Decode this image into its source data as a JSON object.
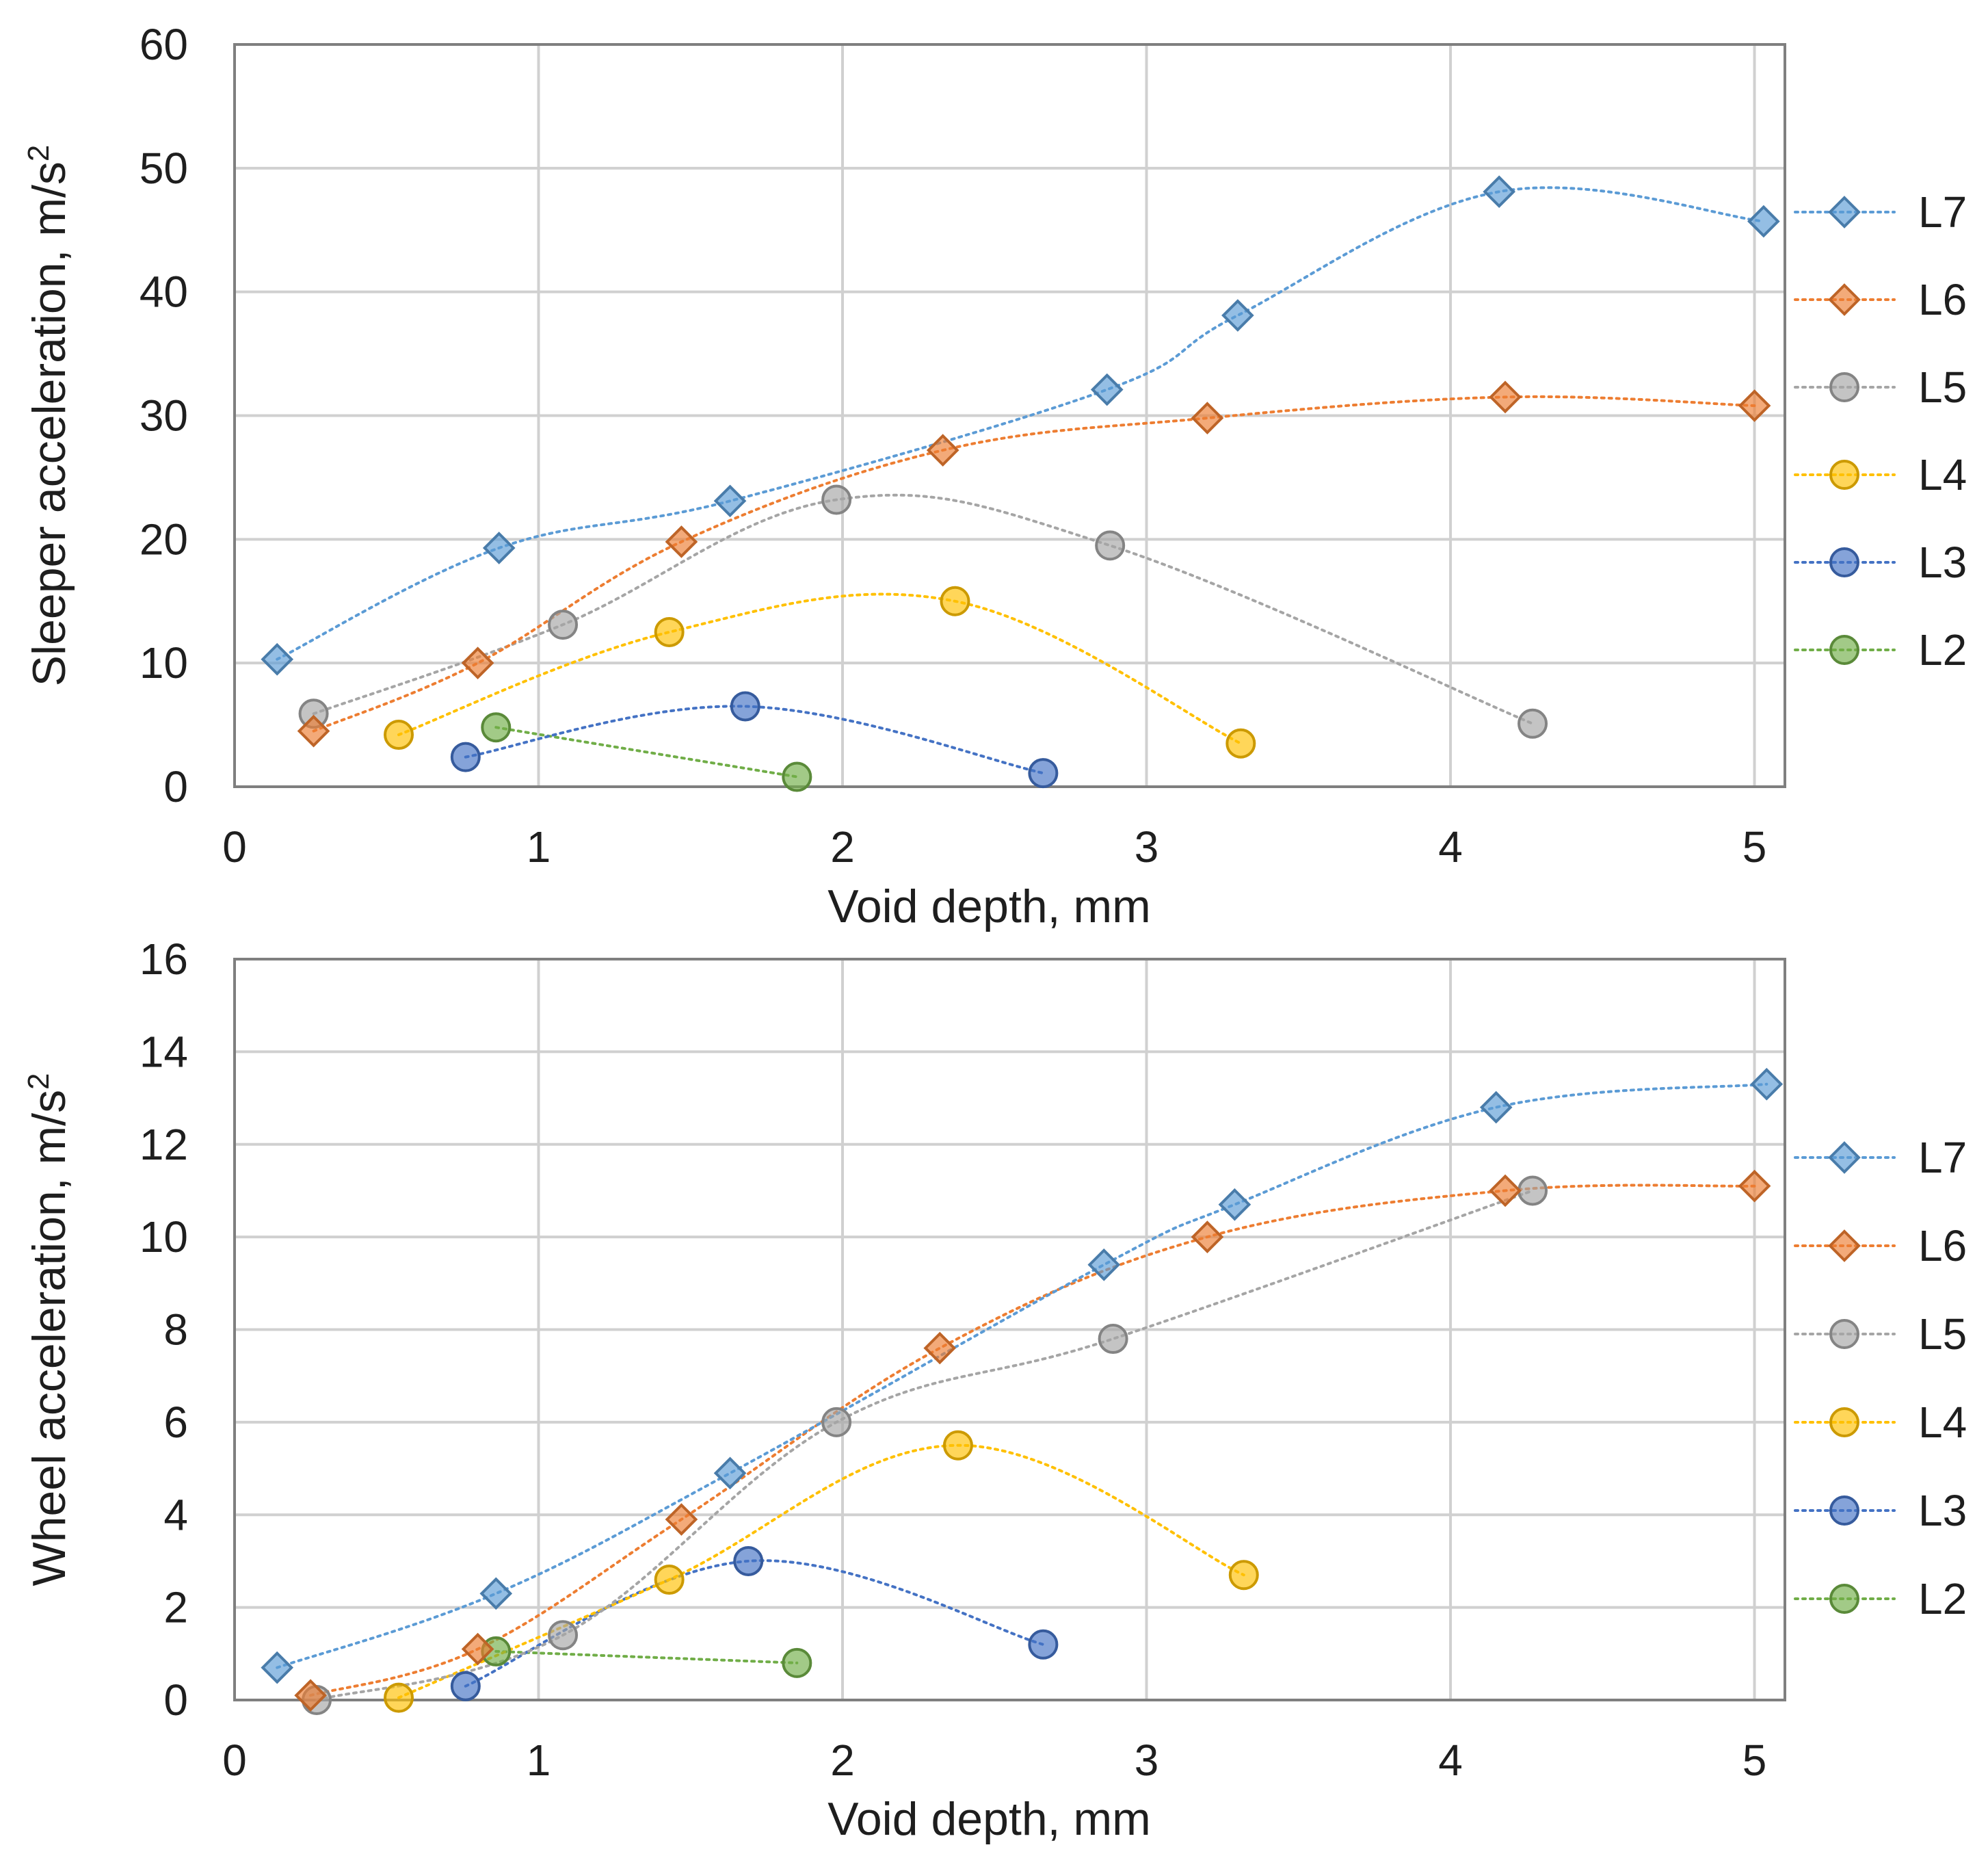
{
  "chart_data": [
    {
      "type": "scatter",
      "ylabel": "Sleeper acceleration, m/s",
      "ylabel_sup": "2",
      "xlabel": "Void depth, mm",
      "xlim": [
        0,
        5.1
      ],
      "ylim": [
        0,
        60
      ],
      "xticks": [
        0,
        1,
        2,
        3,
        4,
        5
      ],
      "yticks": [
        0,
        10,
        20,
        30,
        40,
        50,
        60
      ],
      "grid": true,
      "legend_position": "right",
      "series": [
        {
          "name": "L7",
          "marker": "diamond",
          "color": "#5B9BD5",
          "x": [
            0.14,
            0.87,
            1.63,
            2.87,
            3.3,
            4.16,
            5.03
          ],
          "y": [
            10.3,
            19.3,
            23.1,
            32.1,
            38.1,
            48.1,
            45.7
          ]
        },
        {
          "name": "L6",
          "marker": "diamond",
          "color": "#ED7D31",
          "x": [
            0.26,
            0.8,
            1.47,
            2.33,
            3.2,
            4.18,
            5.0
          ],
          "y": [
            4.5,
            10.0,
            19.8,
            27.2,
            29.8,
            31.5,
            30.8
          ]
        },
        {
          "name": "L5",
          "marker": "circle",
          "color": "#A5A5A5",
          "x": [
            0.26,
            1.08,
            1.98,
            2.88,
            4.27
          ],
          "y": [
            5.9,
            13.1,
            23.2,
            19.5,
            5.1
          ]
        },
        {
          "name": "L4",
          "marker": "circle",
          "color": "#FFC000",
          "x": [
            0.54,
            1.43,
            2.37,
            3.31
          ],
          "y": [
            4.2,
            12.5,
            15.0,
            3.5
          ]
        },
        {
          "name": "L3",
          "marker": "circle",
          "color": "#4472C4",
          "x": [
            0.76,
            1.68,
            2.66
          ],
          "y": [
            2.4,
            6.5,
            1.1
          ]
        },
        {
          "name": "L2",
          "marker": "circle",
          "color": "#70AD47",
          "x": [
            0.86,
            1.85
          ],
          "y": [
            4.8,
            0.8
          ]
        }
      ]
    },
    {
      "type": "scatter",
      "ylabel": "Wheel acceleration, m/s",
      "ylabel_sup": "2",
      "xlabel": "Void depth, mm",
      "xlim": [
        0,
        5.1
      ],
      "ylim": [
        0,
        16
      ],
      "xticks": [
        0,
        1,
        2,
        3,
        4,
        5
      ],
      "yticks": [
        0,
        2,
        4,
        6,
        8,
        10,
        12,
        14,
        16
      ],
      "grid": true,
      "legend_position": "right",
      "series": [
        {
          "name": "L7",
          "marker": "diamond",
          "color": "#5B9BD5",
          "x": [
            0.14,
            0.86,
            1.63,
            2.86,
            3.29,
            4.15,
            5.04
          ],
          "y": [
            0.7,
            2.3,
            4.9,
            9.4,
            10.7,
            12.8,
            13.3
          ]
        },
        {
          "name": "L6",
          "marker": "diamond",
          "color": "#ED7D31",
          "x": [
            0.25,
            0.8,
            1.47,
            2.32,
            3.2,
            4.18,
            5.0
          ],
          "y": [
            0.1,
            1.1,
            3.9,
            7.6,
            10.0,
            11.0,
            11.1
          ]
        },
        {
          "name": "L5",
          "marker": "circle",
          "color": "#A5A5A5",
          "x": [
            0.27,
            1.08,
            1.98,
            2.89,
            4.27
          ],
          "y": [
            0.0,
            1.4,
            6.0,
            7.8,
            11.0
          ]
        },
        {
          "name": "L4",
          "marker": "circle",
          "color": "#FFC000",
          "x": [
            0.54,
            1.43,
            2.38,
            3.32
          ],
          "y": [
            0.05,
            2.6,
            5.5,
            2.7
          ]
        },
        {
          "name": "L3",
          "marker": "circle",
          "color": "#4472C4",
          "x": [
            0.76,
            1.69,
            2.66
          ],
          "y": [
            0.3,
            3.0,
            1.2
          ]
        },
        {
          "name": "L2",
          "marker": "circle",
          "color": "#70AD47",
          "x": [
            0.86,
            1.85
          ],
          "y": [
            1.05,
            0.8
          ]
        }
      ]
    }
  ]
}
